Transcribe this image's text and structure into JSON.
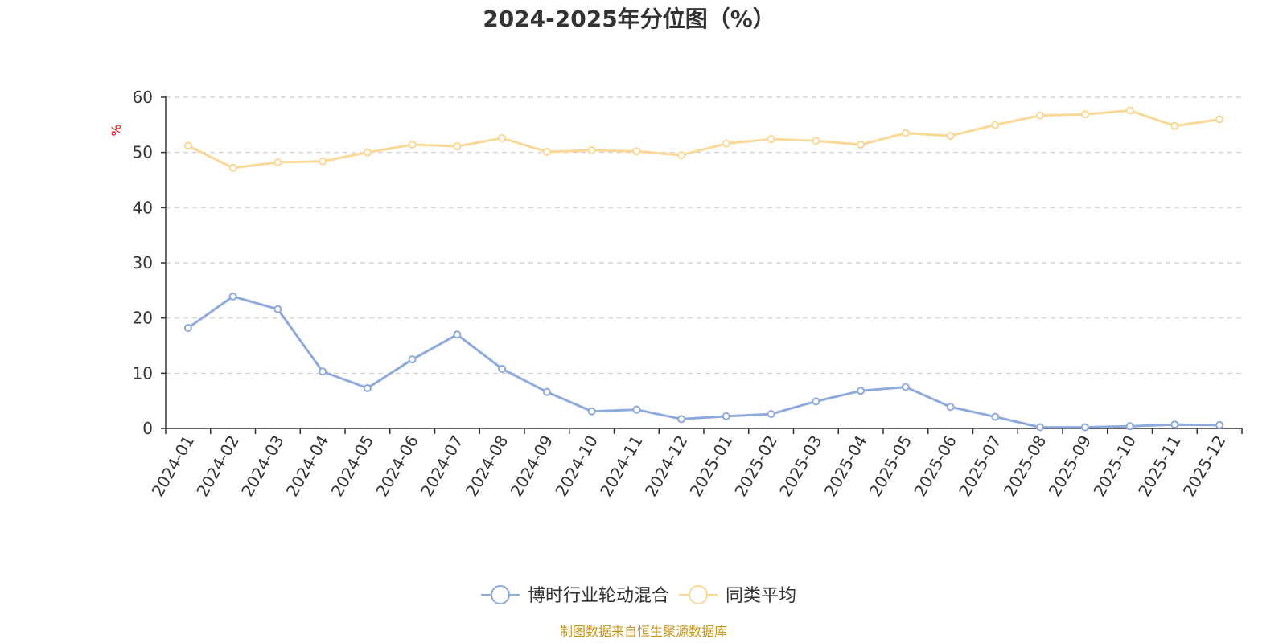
{
  "chart_data": {
    "type": "line",
    "title": "2024-2025年分位图（%）",
    "ylabel": "%",
    "xlabel": "",
    "ylim": [
      0,
      60
    ],
    "yticks": [
      0,
      10,
      20,
      30,
      40,
      50,
      60
    ],
    "grid": true,
    "legend_position": "bottom-center",
    "categories": [
      "2024-01",
      "2024-02",
      "2024-03",
      "2024-04",
      "2024-05",
      "2024-06",
      "2024-07",
      "2024-08",
      "2024-09",
      "2024-10",
      "2024-11",
      "2024-12",
      "2025-01",
      "2025-02",
      "2025-03",
      "2025-04",
      "2025-05",
      "2025-06",
      "2025-07",
      "2025-08",
      "2025-09",
      "2025-10",
      "2025-11",
      "2025-12"
    ],
    "series": [
      {
        "name": "博时行业轮动混合",
        "color": "#8eaadb",
        "values": [
          18.2,
          23.9,
          21.6,
          10.3,
          7.3,
          12.5,
          17.0,
          10.8,
          6.6,
          3.1,
          3.4,
          1.7,
          2.2,
          2.6,
          4.9,
          6.8,
          7.5,
          3.9,
          2.1,
          0.2,
          0.2,
          0.4,
          0.7,
          0.6
        ]
      },
      {
        "name": "同类平均",
        "color": "#fad895",
        "values": [
          51.2,
          47.2,
          48.2,
          48.4,
          50.0,
          51.4,
          51.1,
          52.6,
          50.1,
          50.4,
          50.2,
          49.5,
          51.6,
          52.4,
          52.1,
          51.4,
          53.5,
          53.0,
          55.0,
          56.7,
          56.9,
          57.6,
          54.8,
          56.0
        ]
      }
    ],
    "source": "制图数据来自恒生聚源数据库",
    "source_color": "#c8961e",
    "axis_label_color": "#ff0000"
  }
}
